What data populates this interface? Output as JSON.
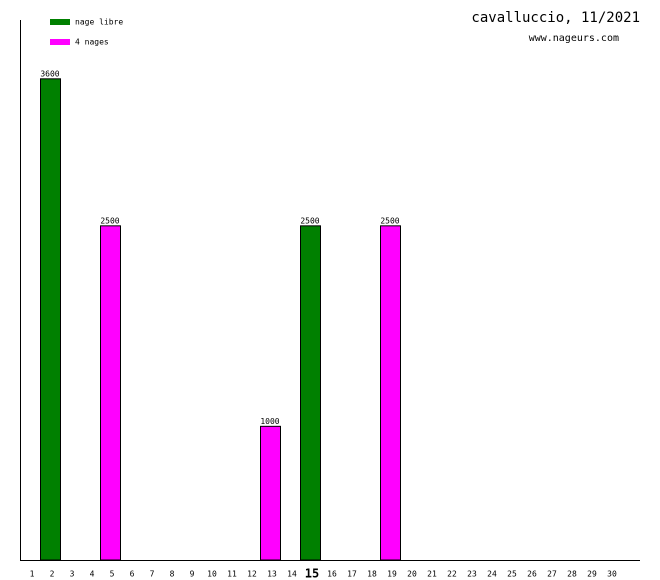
{
  "chart_data": {
    "type": "bar",
    "title": "cavalluccio, 11/2021",
    "subtitle": "www.nageurs.com",
    "categories": [
      "1",
      "2",
      "3",
      "4",
      "5",
      "6",
      "7",
      "8",
      "9",
      "10",
      "11",
      "12",
      "13",
      "14",
      "15",
      "16",
      "17",
      "18",
      "19",
      "20",
      "21",
      "22",
      "23",
      "24",
      "25",
      "26",
      "27",
      "28",
      "29",
      "30"
    ],
    "highlight_index": 14,
    "series": [
      {
        "name": "nage libre",
        "color": "#008000",
        "values": [
          null,
          3600,
          null,
          null,
          null,
          null,
          null,
          null,
          null,
          null,
          null,
          null,
          null,
          null,
          2500,
          null,
          null,
          null,
          null,
          null,
          null,
          null,
          null,
          null,
          null,
          null,
          null,
          null,
          null,
          null
        ]
      },
      {
        "name": "4 nages",
        "color": "#ff00ff",
        "values": [
          null,
          null,
          null,
          null,
          2500,
          null,
          null,
          null,
          null,
          null,
          null,
          null,
          1000,
          null,
          null,
          null,
          null,
          null,
          2500,
          null,
          null,
          null,
          null,
          null,
          null,
          null,
          null,
          null,
          null,
          null
        ]
      }
    ],
    "ylim": [
      0,
      4040
    ],
    "legend": "top-left"
  }
}
